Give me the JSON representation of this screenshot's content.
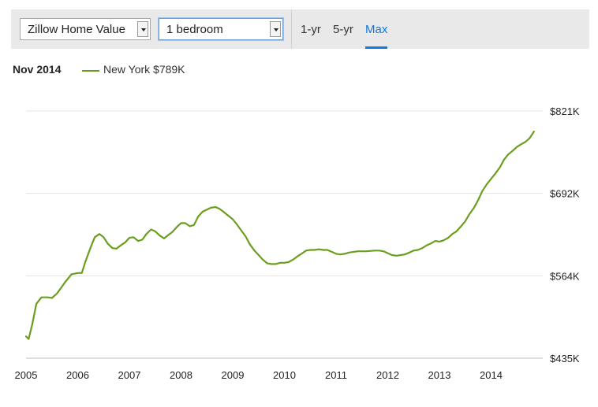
{
  "controls": {
    "metric_select": "Zillow Home Value",
    "bedroom_select": "1 bedroom",
    "ranges": [
      "1-yr",
      "5-yr",
      "Max"
    ],
    "active_range": "Max"
  },
  "legend": {
    "date": "Nov 2014",
    "series_label": "New York $789K",
    "color": "#6b9e1f"
  },
  "chart_data": {
    "type": "line",
    "title": "",
    "xlabel": "",
    "ylabel": "",
    "x_ticks": [
      "2005",
      "2006",
      "2007",
      "2008",
      "2009",
      "2010",
      "2011",
      "2012",
      "2013",
      "2014"
    ],
    "y_ticks": [
      "$435K",
      "$564K",
      "$692K",
      "$821K"
    ],
    "ylim": [
      435,
      821
    ],
    "xlim": [
      2005.0,
      2015.0
    ],
    "grid": true,
    "series": [
      {
        "name": "New York",
        "color": "#6b9e1f",
        "points": [
          [
            2005.0,
            469
          ],
          [
            2005.05,
            465
          ],
          [
            2005.12,
            488
          ],
          [
            2005.2,
            520
          ],
          [
            2005.3,
            530
          ],
          [
            2005.42,
            530
          ],
          [
            2005.5,
            529
          ],
          [
            2005.6,
            536
          ],
          [
            2005.75,
            553
          ],
          [
            2005.88,
            566
          ],
          [
            2006.0,
            568
          ],
          [
            2006.08,
            568
          ],
          [
            2006.15,
            586
          ],
          [
            2006.25,
            608
          ],
          [
            2006.33,
            624
          ],
          [
            2006.42,
            629
          ],
          [
            2006.5,
            624
          ],
          [
            2006.58,
            614
          ],
          [
            2006.67,
            607
          ],
          [
            2006.75,
            606
          ],
          [
            2006.83,
            611
          ],
          [
            2006.92,
            616
          ],
          [
            2007.0,
            623
          ],
          [
            2007.08,
            624
          ],
          [
            2007.17,
            618
          ],
          [
            2007.25,
            620
          ],
          [
            2007.33,
            629
          ],
          [
            2007.42,
            636
          ],
          [
            2007.5,
            633
          ],
          [
            2007.58,
            627
          ],
          [
            2007.67,
            622
          ],
          [
            2007.75,
            627
          ],
          [
            2007.83,
            632
          ],
          [
            2007.92,
            640
          ],
          [
            2008.0,
            646
          ],
          [
            2008.08,
            646
          ],
          [
            2008.17,
            641
          ],
          [
            2008.25,
            643
          ],
          [
            2008.33,
            656
          ],
          [
            2008.42,
            664
          ],
          [
            2008.5,
            667
          ],
          [
            2008.58,
            670
          ],
          [
            2008.67,
            671
          ],
          [
            2008.75,
            668
          ],
          [
            2008.83,
            663
          ],
          [
            2008.92,
            657
          ],
          [
            2009.0,
            652
          ],
          [
            2009.08,
            644
          ],
          [
            2009.17,
            634
          ],
          [
            2009.25,
            625
          ],
          [
            2009.33,
            613
          ],
          [
            2009.42,
            603
          ],
          [
            2009.5,
            596
          ],
          [
            2009.58,
            589
          ],
          [
            2009.67,
            583
          ],
          [
            2009.75,
            582
          ],
          [
            2009.83,
            582
          ],
          [
            2009.92,
            584
          ],
          [
            2010.0,
            584
          ],
          [
            2010.08,
            585
          ],
          [
            2010.17,
            589
          ],
          [
            2010.25,
            594
          ],
          [
            2010.33,
            598
          ],
          [
            2010.42,
            603
          ],
          [
            2010.5,
            604
          ],
          [
            2010.58,
            604
          ],
          [
            2010.67,
            605
          ],
          [
            2010.75,
            604
          ],
          [
            2010.83,
            604
          ],
          [
            2010.92,
            601
          ],
          [
            2011.0,
            598
          ],
          [
            2011.08,
            597
          ],
          [
            2011.17,
            598
          ],
          [
            2011.25,
            600
          ],
          [
            2011.42,
            602
          ],
          [
            2011.58,
            602
          ],
          [
            2011.75,
            603
          ],
          [
            2011.83,
            603
          ],
          [
            2011.92,
            602
          ],
          [
            2012.0,
            599
          ],
          [
            2012.08,
            596
          ],
          [
            2012.17,
            595
          ],
          [
            2012.25,
            596
          ],
          [
            2012.33,
            597
          ],
          [
            2012.42,
            600
          ],
          [
            2012.5,
            603
          ],
          [
            2012.58,
            604
          ],
          [
            2012.67,
            607
          ],
          [
            2012.75,
            611
          ],
          [
            2012.83,
            614
          ],
          [
            2012.92,
            618
          ],
          [
            2013.0,
            617
          ],
          [
            2013.08,
            619
          ],
          [
            2013.17,
            623
          ],
          [
            2013.25,
            629
          ],
          [
            2013.33,
            633
          ],
          [
            2013.42,
            641
          ],
          [
            2013.5,
            649
          ],
          [
            2013.58,
            660
          ],
          [
            2013.67,
            670
          ],
          [
            2013.75,
            682
          ],
          [
            2013.83,
            696
          ],
          [
            2013.92,
            707
          ],
          [
            2014.0,
            715
          ],
          [
            2014.08,
            723
          ],
          [
            2014.17,
            733
          ],
          [
            2014.25,
            745
          ],
          [
            2014.33,
            753
          ],
          [
            2014.42,
            759
          ],
          [
            2014.5,
            765
          ],
          [
            2014.58,
            769
          ],
          [
            2014.67,
            773
          ],
          [
            2014.75,
            779
          ],
          [
            2014.83,
            789
          ]
        ]
      }
    ]
  }
}
